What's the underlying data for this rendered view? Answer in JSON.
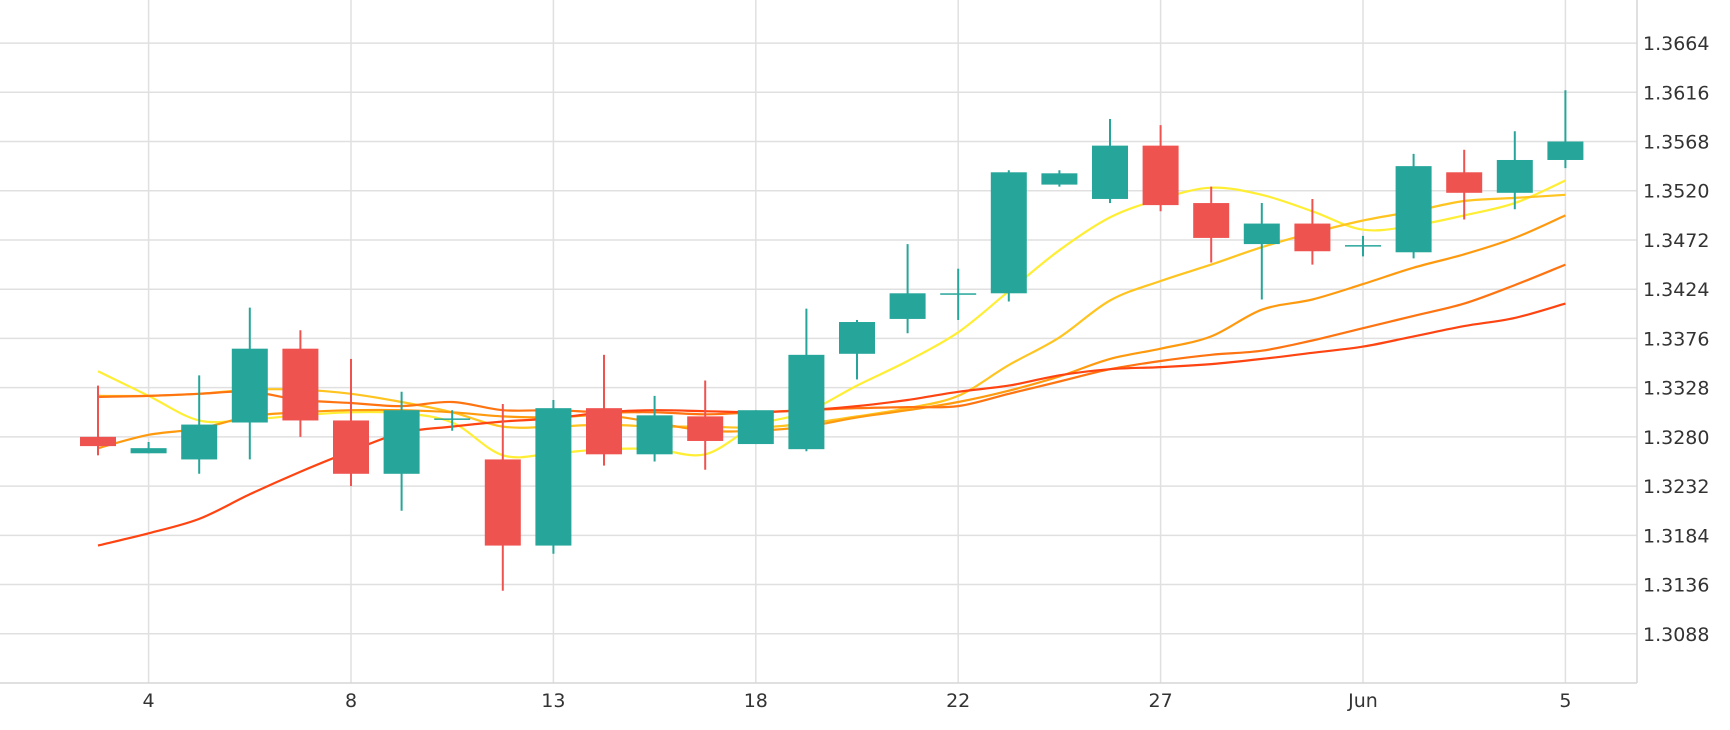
{
  "chart_data": {
    "type": "candlestick",
    "x_tick_labels": [
      "4",
      "8",
      "13",
      "18",
      "22",
      "27",
      "Jun",
      "5"
    ],
    "y_tick_labels": [
      "1.3664",
      "1.3616",
      "1.3568",
      "1.3520",
      "1.3472",
      "1.3424",
      "1.3376",
      "1.3328",
      "1.3280",
      "1.3232",
      "1.3184",
      "1.3136",
      "1.3088"
    ],
    "ylim": [
      1.304,
      1.3706
    ],
    "grid": true,
    "y_axis_side": "right",
    "colors": {
      "up": "#26a69a",
      "down": "#ef5350",
      "grid": "#e0e0e0",
      "axis": "#d6d6d6"
    },
    "candles": [
      {
        "o": 1.328,
        "h": 1.333,
        "l": 1.3262,
        "c": 1.3271
      },
      {
        "o": 1.3264,
        "h": 1.3275,
        "l": 1.3264,
        "c": 1.3269
      },
      {
        "o": 1.3258,
        "h": 1.334,
        "l": 1.3244,
        "c": 1.3292
      },
      {
        "o": 1.3294,
        "h": 1.3406,
        "l": 1.3258,
        "c": 1.3366
      },
      {
        "o": 1.3366,
        "h": 1.3384,
        "l": 1.328,
        "c": 1.3296
      },
      {
        "o": 1.3296,
        "h": 1.3356,
        "l": 1.3232,
        "c": 1.3244
      },
      {
        "o": 1.3244,
        "h": 1.3324,
        "l": 1.3208,
        "c": 1.3306
      },
      {
        "o": 1.3298,
        "h": 1.3306,
        "l": 1.3286,
        "c": 1.3298
      },
      {
        "o": 1.3258,
        "h": 1.3312,
        "l": 1.313,
        "c": 1.3174
      },
      {
        "o": 1.3174,
        "h": 1.3316,
        "l": 1.3166,
        "c": 1.3308
      },
      {
        "o": 1.3308,
        "h": 1.336,
        "l": 1.3252,
        "c": 1.3263
      },
      {
        "o": 1.3263,
        "h": 1.332,
        "l": 1.3256,
        "c": 1.3301
      },
      {
        "o": 1.33,
        "h": 1.3335,
        "l": 1.3248,
        "c": 1.3276
      },
      {
        "o": 1.3273,
        "h": 1.3306,
        "l": 1.3273,
        "c": 1.3306
      },
      {
        "o": 1.3268,
        "h": 1.3405,
        "l": 1.3266,
        "c": 1.336
      },
      {
        "o": 1.3361,
        "h": 1.3394,
        "l": 1.3336,
        "c": 1.3392
      },
      {
        "o": 1.3395,
        "h": 1.3468,
        "l": 1.3381,
        "c": 1.342
      },
      {
        "o": 1.342,
        "h": 1.3444,
        "l": 1.3394,
        "c": 1.342
      },
      {
        "o": 1.342,
        "h": 1.354,
        "l": 1.3412,
        "c": 1.3538
      },
      {
        "o": 1.3526,
        "h": 1.354,
        "l": 1.3524,
        "c": 1.3537
      },
      {
        "o": 1.3512,
        "h": 1.359,
        "l": 1.3508,
        "c": 1.3564
      },
      {
        "o": 1.3564,
        "h": 1.3584,
        "l": 1.35,
        "c": 1.3506
      },
      {
        "o": 1.3508,
        "h": 1.3524,
        "l": 1.345,
        "c": 1.3474
      },
      {
        "o": 1.3468,
        "h": 1.3508,
        "l": 1.3414,
        "c": 1.3488
      },
      {
        "o": 1.3488,
        "h": 1.3512,
        "l": 1.3448,
        "c": 1.3461
      },
      {
        "o": 1.3467,
        "h": 1.3476,
        "l": 1.3456,
        "c": 1.3467
      },
      {
        "o": 1.346,
        "h": 1.3556,
        "l": 1.3454,
        "c": 1.3544
      },
      {
        "o": 1.3538,
        "h": 1.356,
        "l": 1.3492,
        "c": 1.3518
      },
      {
        "o": 1.3518,
        "h": 1.3578,
        "l": 1.3502,
        "c": 1.355
      },
      {
        "o": 1.355,
        "h": 1.3618,
        "l": 1.3542,
        "c": 1.3568
      }
    ],
    "moving_averages": [
      {
        "color": "#ffee33",
        "values": [
          1.3344,
          1.332,
          1.3296,
          1.3297,
          1.3301,
          1.3304,
          1.3303,
          1.3294,
          1.3262,
          1.3264,
          1.3268,
          1.3268,
          1.3263,
          1.3291,
          1.3304,
          1.333,
          1.3354,
          1.3382,
          1.3422,
          1.3462,
          1.3494,
          1.3512,
          1.3523,
          1.3516,
          1.35,
          1.3482,
          1.3486,
          1.3496,
          1.3508,
          1.353
        ]
      },
      {
        "color": "#ffc41f",
        "values": [
          1.332,
          1.332,
          1.3322,
          1.3326,
          1.3326,
          1.3322,
          1.3314,
          1.3304,
          1.329,
          1.329,
          1.3292,
          1.329,
          1.329,
          1.3289,
          1.3293,
          1.33,
          1.3308,
          1.332,
          1.335,
          1.3377,
          1.3413,
          1.3432,
          1.3448,
          1.3465,
          1.3479,
          1.3491,
          1.35,
          1.351,
          1.3513,
          1.3516
        ]
      },
      {
        "color": "#ff9a0f",
        "values": [
          1.3269,
          1.3282,
          1.3288,
          1.33,
          1.3304,
          1.3306,
          1.3306,
          1.3304,
          1.33,
          1.3299,
          1.3301,
          1.3294,
          1.3286,
          1.3286,
          1.329,
          1.3299,
          1.3306,
          1.3314,
          1.3325,
          1.3339,
          1.3356,
          1.3366,
          1.3378,
          1.3404,
          1.3414,
          1.3429,
          1.3445,
          1.3458,
          1.3474,
          1.3496
        ]
      },
      {
        "color": "#ff7411",
        "values": [
          1.3319,
          1.332,
          1.3322,
          1.3324,
          1.3316,
          1.3313,
          1.331,
          1.3314,
          1.3306,
          1.3306,
          1.3304,
          1.3304,
          1.3302,
          1.3304,
          1.3306,
          1.3308,
          1.3309,
          1.331,
          1.3322,
          1.3334,
          1.3346,
          1.3354,
          1.336,
          1.3364,
          1.3374,
          1.3386,
          1.3398,
          1.341,
          1.3428,
          1.3448
        ]
      },
      {
        "color": "#ff4411",
        "values": [
          1.3174,
          1.3186,
          1.32,
          1.3224,
          1.3246,
          1.3266,
          1.3284,
          1.329,
          1.3295,
          1.3298,
          1.3304,
          1.3306,
          1.3305,
          1.3304,
          1.3306,
          1.331,
          1.3316,
          1.3324,
          1.333,
          1.334,
          1.3346,
          1.3348,
          1.3351,
          1.3356,
          1.3362,
          1.3368,
          1.3378,
          1.3388,
          1.3396,
          1.341
        ]
      }
    ]
  }
}
